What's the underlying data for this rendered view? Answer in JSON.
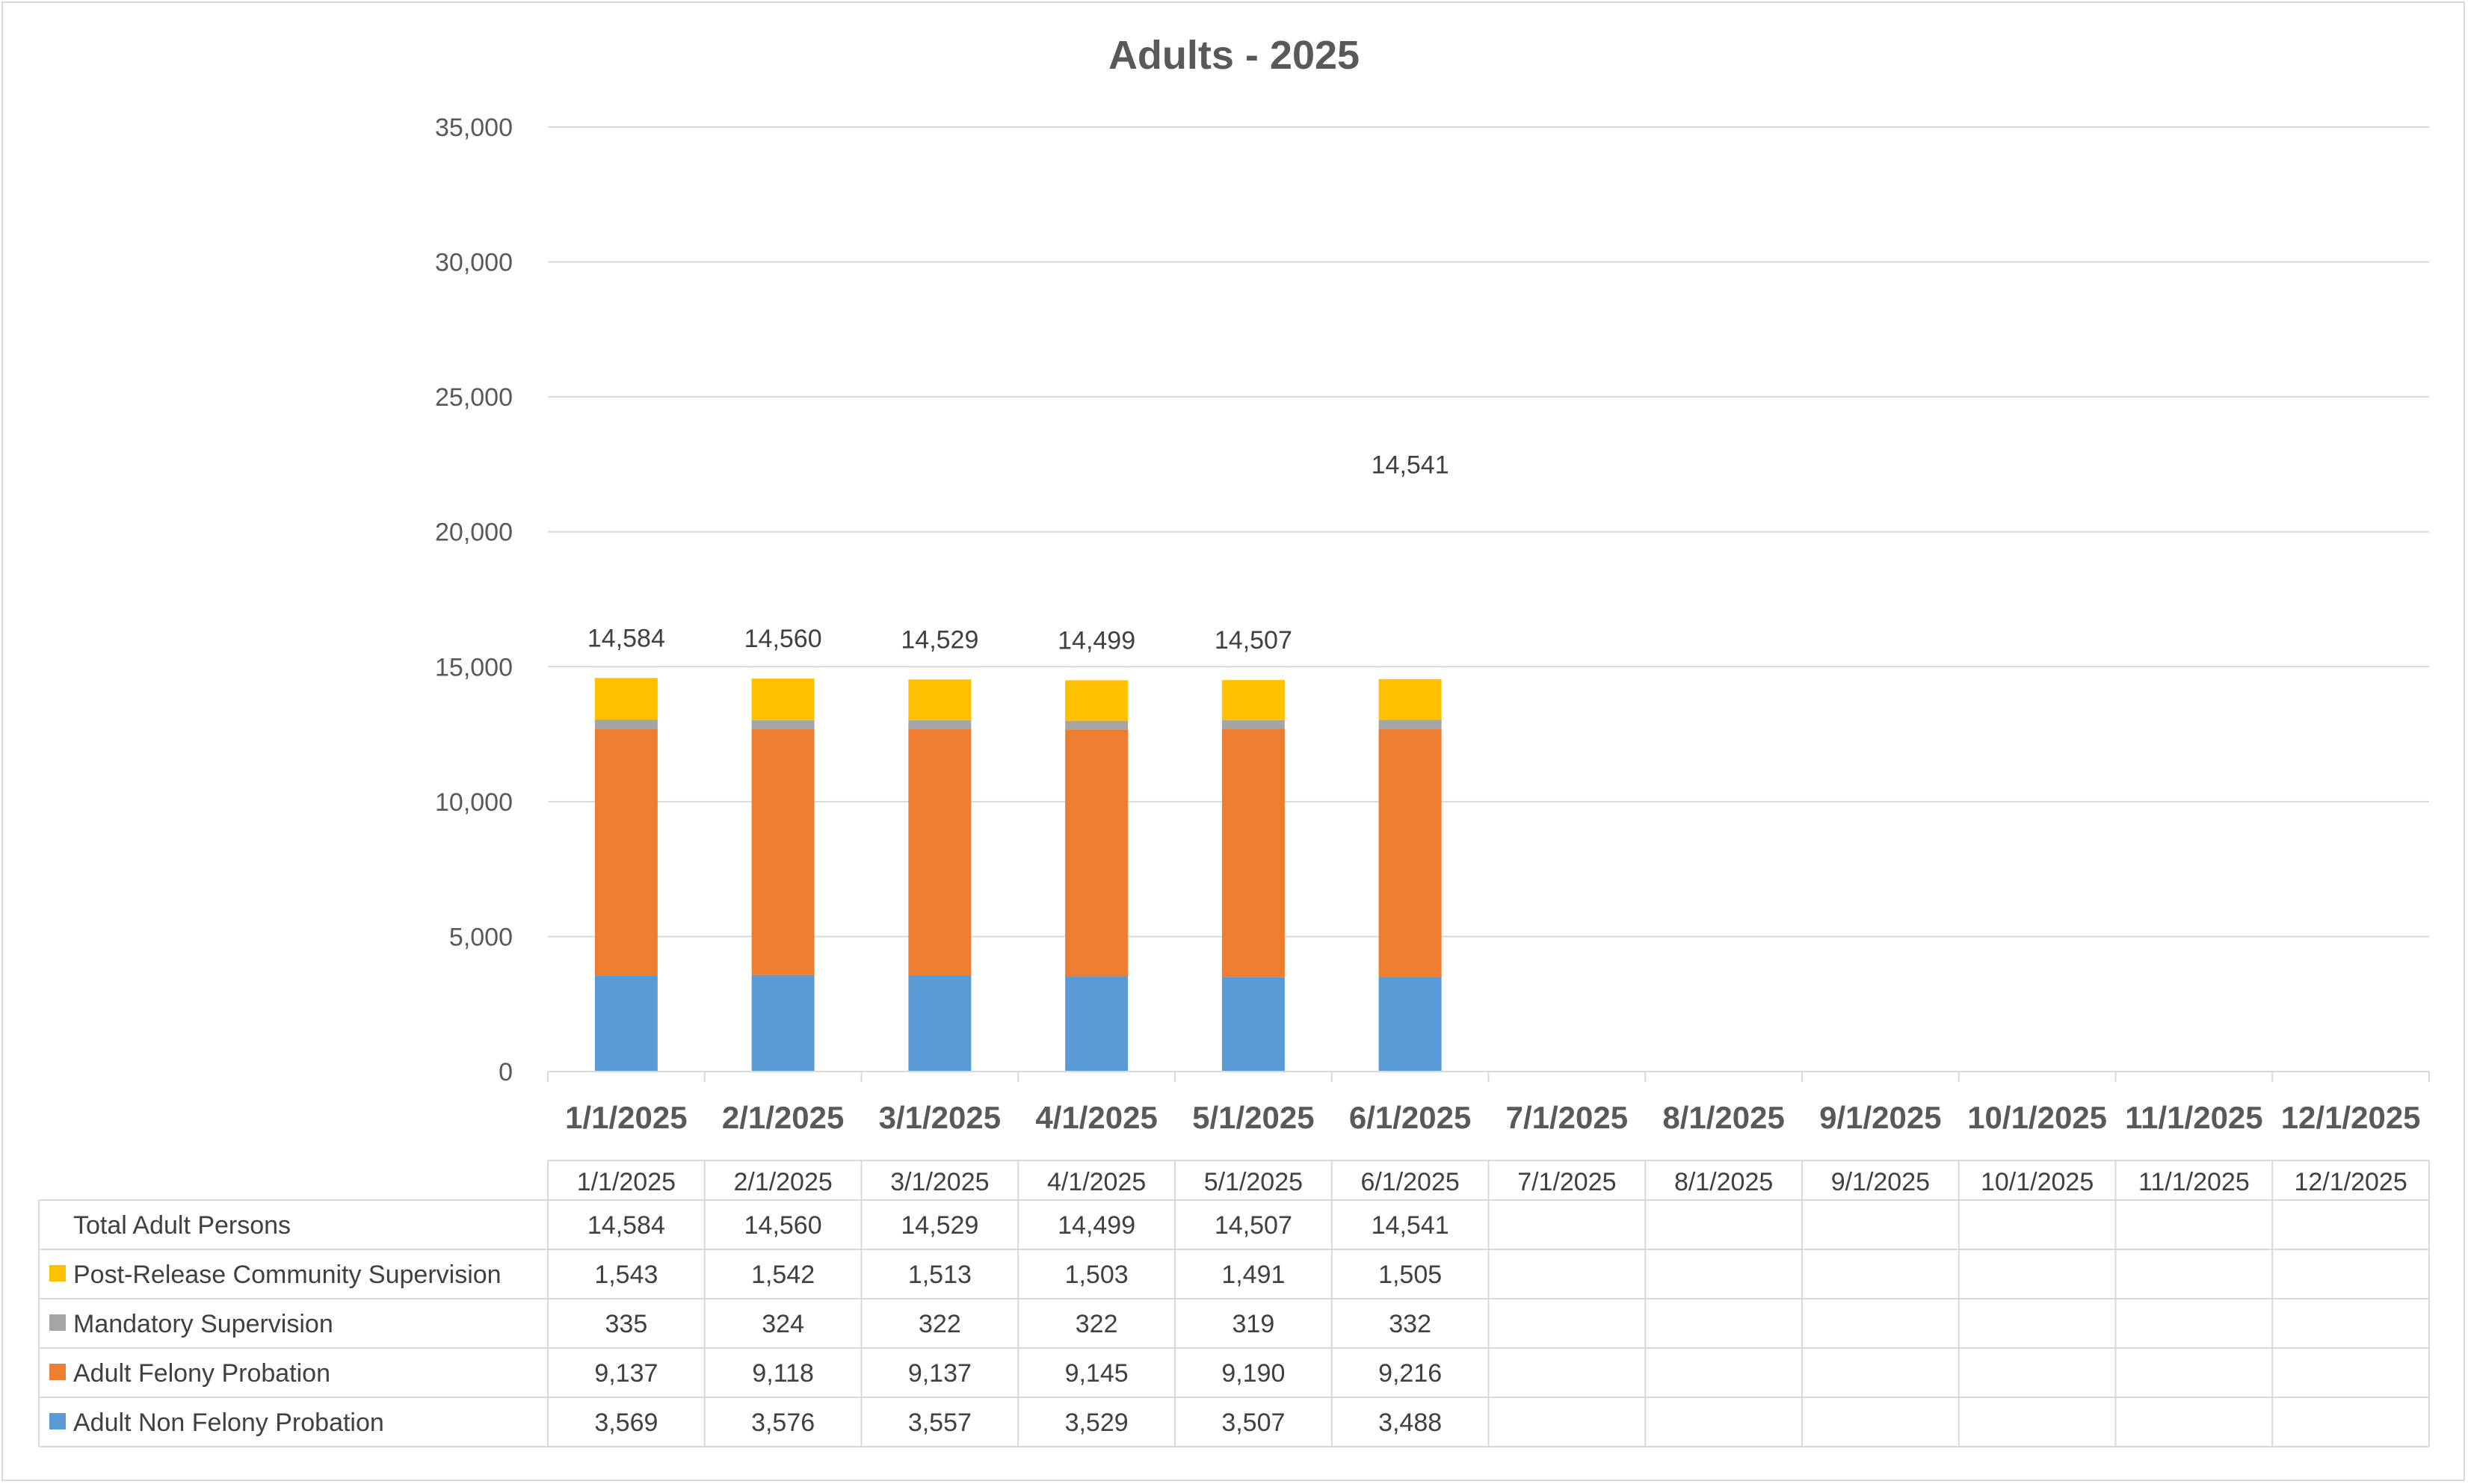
{
  "chart_data": {
    "type": "bar",
    "stacked": true,
    "title": "Adults - 2025",
    "categories": [
      "1/1/2025",
      "2/1/2025",
      "3/1/2025",
      "4/1/2025",
      "5/1/2025",
      "6/1/2025",
      "7/1/2025",
      "8/1/2025",
      "9/1/2025",
      "10/1/2025",
      "11/1/2025",
      "12/1/2025"
    ],
    "ylim": [
      0,
      35000
    ],
    "yticks": [
      0,
      5000,
      10000,
      15000,
      20000,
      25000,
      30000,
      35000
    ],
    "ytick_labels": [
      "0",
      "5,000",
      "10,000",
      "15,000",
      "20,000",
      "25,000",
      "30,000",
      "35,000"
    ],
    "grid": true,
    "series": [
      {
        "name": "Adult Non Felony Probation",
        "color": "#5b9bd5",
        "values": [
          3569,
          3576,
          3557,
          3529,
          3507,
          3488,
          null,
          null,
          null,
          null,
          null,
          null
        ],
        "labels": [
          "3,569",
          "3,576",
          "3,557",
          "3,529",
          "3,507",
          "3,488",
          "",
          "",
          "",
          "",
          "",
          ""
        ]
      },
      {
        "name": "Adult Felony Probation",
        "color": "#ed7d31",
        "values": [
          9137,
          9118,
          9137,
          9145,
          9190,
          9216,
          null,
          null,
          null,
          null,
          null,
          null
        ],
        "labels": [
          "9,137",
          "9,118",
          "9,137",
          "9,145",
          "9,190",
          "9,216",
          "",
          "",
          "",
          "",
          "",
          ""
        ]
      },
      {
        "name": "Mandatory Supervision",
        "color": "#a5a5a5",
        "values": [
          335,
          324,
          322,
          322,
          319,
          332,
          null,
          null,
          null,
          null,
          null,
          null
        ],
        "labels": [
          "335",
          "324",
          "322",
          "322",
          "319",
          "332",
          "",
          "",
          "",
          "",
          "",
          ""
        ]
      },
      {
        "name": "Post-Release Community Supervision",
        "color": "#ffc000",
        "values": [
          1543,
          1542,
          1513,
          1503,
          1491,
          1505,
          null,
          null,
          null,
          null,
          null,
          null
        ],
        "labels": [
          "1,543",
          "1,542",
          "1,513",
          "1,503",
          "1,491",
          "1,505",
          "",
          "",
          "",
          "",
          "",
          ""
        ]
      }
    ],
    "total": {
      "name": "Total Adult Persons",
      "values": [
        14584,
        14560,
        14529,
        14499,
        14507,
        14541,
        null,
        null,
        null,
        null,
        null,
        null
      ],
      "labels": [
        "14,584",
        "14,560",
        "14,529",
        "14,499",
        "14,507",
        "14,541",
        "",
        "",
        "",
        "",
        "",
        ""
      ],
      "label_y_values": [
        14584,
        14560,
        14529,
        14499,
        14507,
        21000
      ]
    },
    "table_row_order": [
      "Total Adult Persons",
      "Post-Release Community Supervision",
      "Mandatory Supervision",
      "Adult Felony Probation",
      "Adult Non Felony Probation"
    ]
  }
}
